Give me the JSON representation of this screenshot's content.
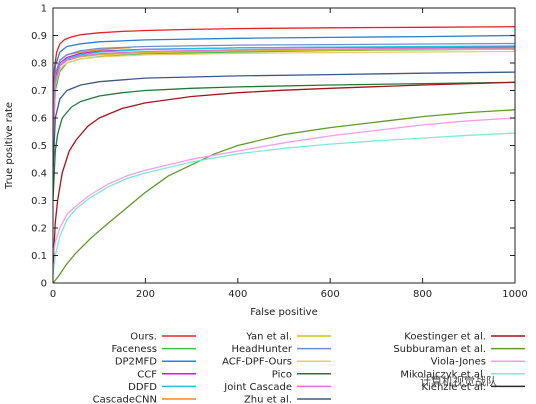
{
  "chart_data": {
    "type": "line",
    "xlabel": "False positive",
    "ylabel": "True positive rate",
    "xlim": [
      0,
      1000
    ],
    "ylim": [
      0,
      1
    ],
    "xticks": [
      0,
      200,
      400,
      600,
      800,
      1000
    ],
    "yticks": [
      0,
      0.1,
      0.2,
      0.3,
      0.4,
      0.5,
      0.6,
      0.7,
      0.8,
      0.9,
      1
    ],
    "grid": false,
    "legend_position": "bottom",
    "series": [
      {
        "name": "Ours.",
        "color": "#e8202a",
        "x": [
          0,
          3,
          8,
          15,
          25,
          40,
          60,
          100,
          150,
          200,
          300,
          400,
          600,
          800,
          1000
        ],
        "y": [
          0.55,
          0.78,
          0.84,
          0.87,
          0.885,
          0.895,
          0.903,
          0.91,
          0.915,
          0.918,
          0.922,
          0.925,
          0.928,
          0.93,
          0.932
        ]
      },
      {
        "name": "Faceness",
        "color": "#33c24a",
        "x": [
          0,
          5,
          15,
          30,
          60,
          100,
          200,
          400,
          600,
          800,
          1000
        ],
        "y": [
          0.5,
          0.7,
          0.77,
          0.8,
          0.815,
          0.823,
          0.833,
          0.84,
          0.845,
          0.848,
          0.851
        ]
      },
      {
        "name": "DP2MFD",
        "color": "#2a7fd6",
        "x": [
          0,
          5,
          15,
          30,
          60,
          100,
          200,
          400,
          600,
          800,
          1000
        ],
        "y": [
          0.6,
          0.79,
          0.84,
          0.86,
          0.87,
          0.877,
          0.884,
          0.89,
          0.893,
          0.896,
          0.9
        ]
      },
      {
        "name": "CCF",
        "color": "#d21ad6",
        "x": [
          0,
          5,
          15,
          30,
          60,
          100,
          200,
          400,
          600,
          800,
          1000
        ],
        "y": [
          0.55,
          0.75,
          0.8,
          0.82,
          0.835,
          0.843,
          0.85,
          0.855,
          0.857,
          0.858,
          0.859
        ]
      },
      {
        "name": "DDFD",
        "color": "#19c7d6",
        "x": [
          0,
          5,
          15,
          30,
          60,
          100,
          200,
          400,
          600,
          800,
          1000
        ],
        "y": [
          0.5,
          0.72,
          0.79,
          0.815,
          0.83,
          0.84,
          0.849,
          0.855,
          0.858,
          0.86,
          0.862
        ]
      },
      {
        "name": "CascadeCNN",
        "color": "#f28a1e",
        "x": [
          0,
          5,
          15,
          30,
          60,
          100,
          140,
          168
        ],
        "y": [
          0.55,
          0.76,
          0.81,
          0.83,
          0.84,
          0.848,
          0.853,
          0.856
        ]
      },
      {
        "name": "Yan et al.",
        "color": "#c9c51a",
        "x": [
          0,
          5,
          15,
          30,
          60,
          100,
          200,
          400,
          600,
          800,
          1000
        ],
        "y": [
          0.5,
          0.73,
          0.79,
          0.81,
          0.823,
          0.83,
          0.838,
          0.844,
          0.847,
          0.849,
          0.85
        ]
      },
      {
        "name": "HeadHunter",
        "color": "#6b8fd6",
        "x": [
          0,
          5,
          15,
          30,
          60,
          100,
          200,
          400,
          600,
          800,
          1000
        ],
        "y": [
          0.55,
          0.76,
          0.81,
          0.83,
          0.845,
          0.853,
          0.86,
          0.865,
          0.867,
          0.869,
          0.871
        ]
      },
      {
        "name": "ACF-DPF-Ours",
        "color": "#f2c86a",
        "x": [
          0,
          5,
          15,
          30,
          60,
          100,
          200,
          400,
          600,
          800,
          1000
        ],
        "y": [
          0.5,
          0.72,
          0.78,
          0.8,
          0.815,
          0.822,
          0.83,
          0.835,
          0.838,
          0.84,
          0.842
        ]
      },
      {
        "name": "Pico",
        "color": "#1f7a3a",
        "x": [
          0,
          5,
          10,
          20,
          40,
          60,
          100,
          150,
          200,
          300,
          400,
          600,
          800,
          1000
        ],
        "y": [
          0.3,
          0.48,
          0.54,
          0.6,
          0.64,
          0.66,
          0.68,
          0.692,
          0.7,
          0.708,
          0.713,
          0.72,
          0.725,
          0.73
        ]
      },
      {
        "name": "Joint Cascade",
        "color": "#e66fd9",
        "x": [
          0,
          5,
          15,
          30,
          60,
          100,
          200,
          400,
          600,
          800,
          1000
        ],
        "y": [
          0.5,
          0.73,
          0.79,
          0.81,
          0.825,
          0.834,
          0.842,
          0.848,
          0.851,
          0.853,
          0.855
        ]
      },
      {
        "name": "Zhu et al.",
        "color": "#3a5a8a",
        "x": [
          0,
          5,
          15,
          30,
          60,
          100,
          200,
          400,
          600,
          800,
          1000
        ],
        "y": [
          0.4,
          0.6,
          0.67,
          0.7,
          0.72,
          0.732,
          0.745,
          0.753,
          0.758,
          0.763,
          0.767
        ]
      },
      {
        "name": "Koestinger et al.",
        "color": "#a8131c",
        "x": [
          0,
          5,
          10,
          20,
          35,
          50,
          75,
          100,
          150,
          200,
          300,
          400,
          500,
          600,
          800,
          1000
        ],
        "y": [
          0.05,
          0.22,
          0.3,
          0.4,
          0.48,
          0.52,
          0.57,
          0.6,
          0.635,
          0.655,
          0.678,
          0.692,
          0.701,
          0.708,
          0.72,
          0.73
        ]
      },
      {
        "name": "Subburaman et al.",
        "color": "#5f9a2a",
        "x": [
          0,
          10,
          30,
          50,
          80,
          100,
          150,
          200,
          250,
          300,
          350,
          400,
          500,
          600,
          700,
          800,
          900,
          1000
        ],
        "y": [
          0,
          0.02,
          0.07,
          0.11,
          0.16,
          0.19,
          0.26,
          0.33,
          0.39,
          0.43,
          0.47,
          0.5,
          0.54,
          0.565,
          0.585,
          0.605,
          0.62,
          0.63
        ]
      },
      {
        "name": "Viola-Jones",
        "color": "#f59cf0",
        "x": [
          0,
          5,
          15,
          30,
          50,
          80,
          120,
          160,
          200,
          250,
          300,
          400,
          500,
          600,
          700,
          800,
          900,
          1000
        ],
        "y": [
          0.1,
          0.15,
          0.2,
          0.25,
          0.28,
          0.32,
          0.36,
          0.39,
          0.41,
          0.43,
          0.45,
          0.48,
          0.51,
          0.535,
          0.555,
          0.575,
          0.59,
          0.6
        ]
      },
      {
        "name": "Mikolajczyk et al.",
        "color": "#7fe8d6",
        "x": [
          0,
          5,
          15,
          30,
          50,
          80,
          120,
          160,
          200,
          250,
          300,
          400,
          500,
          600,
          700,
          800,
          900,
          1000
        ],
        "y": [
          0.03,
          0.1,
          0.17,
          0.23,
          0.27,
          0.31,
          0.35,
          0.38,
          0.4,
          0.42,
          0.44,
          0.47,
          0.49,
          0.505,
          0.517,
          0.527,
          0.537,
          0.545
        ]
      },
      {
        "name": "Kienzle et al.",
        "color": "#2a2a2a",
        "x": [
          0,
          0.05
        ],
        "y": [
          0,
          0
        ]
      }
    ],
    "watermark_text": "计算机视觉战队"
  }
}
